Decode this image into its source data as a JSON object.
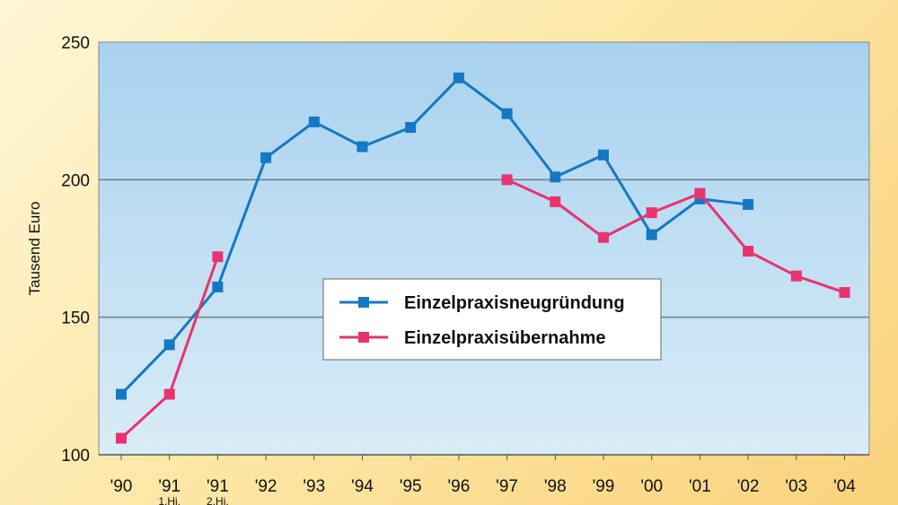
{
  "chart_data": {
    "type": "line",
    "ylabel": "Tausend Euro",
    "ylim": [
      100,
      250
    ],
    "yticks": [
      100,
      150,
      200,
      250
    ],
    "grid": "horizontal",
    "legend_position": "center-right",
    "categories": [
      "'90",
      "'91",
      "'91",
      "'92",
      "'93",
      "'94",
      "'95",
      "'96",
      "'97",
      "'98",
      "'99",
      "'00",
      "'01",
      "'02",
      "'03",
      "'04"
    ],
    "category_sublabels": [
      "",
      "1.Hj.",
      "2.Hj.",
      "",
      "",
      "",
      "",
      "",
      "",
      "",
      "",
      "",
      "",
      "",
      "",
      ""
    ],
    "series": [
      {
        "name": "Einzelpraxisneugründung",
        "color": "#1478c4",
        "values": [
          122,
          140,
          161,
          208,
          221,
          212,
          219,
          237,
          224,
          201,
          209,
          180,
          193,
          191,
          null,
          null
        ]
      },
      {
        "name": "Einzelpraxisübernahme",
        "color": "#e8336e",
        "values": [
          106,
          122,
          172,
          null,
          null,
          null,
          null,
          null,
          200,
          192,
          179,
          188,
          195,
          174,
          165,
          159
        ]
      }
    ]
  }
}
